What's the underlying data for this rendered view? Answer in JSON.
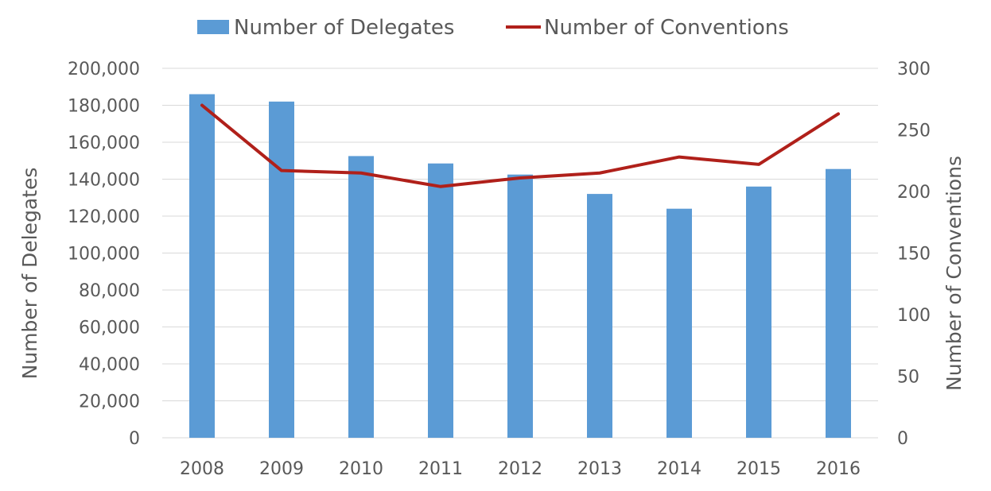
{
  "chart_data": {
    "type": "bar",
    "categories": [
      "2008",
      "2009",
      "2010",
      "2011",
      "2012",
      "2013",
      "2014",
      "2015",
      "2016"
    ],
    "series": [
      {
        "name": "Number of Delegates",
        "type": "bar",
        "axis": "left",
        "color": "#5b9bd5",
        "values": [
          186000,
          182000,
          152500,
          148500,
          142500,
          132000,
          124000,
          136000,
          145500
        ]
      },
      {
        "name": "Number of Conventions",
        "type": "line",
        "axis": "right",
        "color": "#b0201a",
        "values": [
          270,
          217,
          215,
          204,
          211,
          215,
          228,
          222,
          263
        ]
      }
    ],
    "title": "",
    "xlabel": "",
    "ylabel": "Number of Delegates",
    "y2label": "Number of Conventions",
    "ylim": [
      0,
      200000
    ],
    "y2lim": [
      0,
      300
    ],
    "yticks": [
      "0",
      "20,000",
      "40,000",
      "60,000",
      "80,000",
      "100,000",
      "120,000",
      "140,000",
      "160,000",
      "180,000",
      "200,000"
    ],
    "y2ticks": [
      "0",
      "50",
      "100",
      "150",
      "200",
      "250",
      "300"
    ],
    "grid": true,
    "legend": "top"
  }
}
